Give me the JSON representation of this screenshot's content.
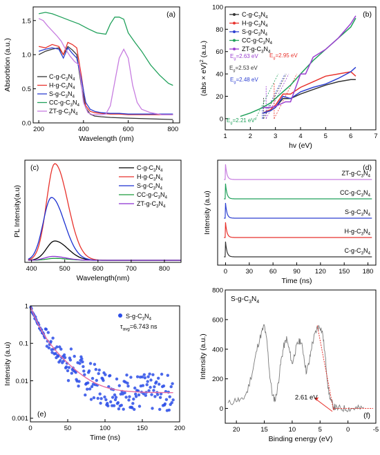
{
  "panels": {
    "a": {
      "tag": "(a)",
      "xlabel": "Wavelength (nm)",
      "ylabel": "Absorbtion (a.u.)",
      "xlim": [
        175,
        830
      ],
      "ylim": [
        0,
        1.7
      ],
      "xticks": [
        200,
        400,
        600,
        800
      ],
      "yticks": [
        0.0,
        0.5,
        1.0,
        1.5
      ],
      "ytick_labels": [
        "0.0",
        "0.5",
        "1.0",
        "1.5"
      ],
      "series": [
        {
          "name": "C-g-C3N4",
          "label_parts": [
            "C-g-C",
            "3",
            "N",
            "4"
          ],
          "color": "#333333",
          "x": [
            200,
            230,
            260,
            290,
            310,
            330,
            350,
            370,
            390,
            410,
            430,
            450,
            480,
            520,
            560,
            600,
            650,
            700,
            750,
            800
          ],
          "y": [
            1.0,
            1.05,
            1.08,
            1.1,
            1.0,
            1.12,
            1.07,
            1.0,
            0.55,
            0.22,
            0.13,
            0.1,
            0.09,
            0.08,
            0.075,
            0.07,
            0.065,
            0.06,
            0.055,
            0.05
          ]
        },
        {
          "name": "H-g-C3N4",
          "label_parts": [
            "H-g-C",
            "3",
            "N",
            "4"
          ],
          "color": "#e8322c",
          "x": [
            200,
            230,
            260,
            290,
            310,
            330,
            350,
            370,
            390,
            410,
            430,
            450,
            480,
            520,
            560,
            600,
            650,
            700,
            750,
            800
          ],
          "y": [
            1.12,
            1.1,
            1.15,
            1.12,
            1.0,
            1.18,
            1.15,
            1.1,
            0.7,
            0.25,
            0.17,
            0.15,
            0.14,
            0.13,
            0.13,
            0.12,
            0.12,
            0.12,
            0.12,
            0.12
          ]
        },
        {
          "name": "S-g-C3N4",
          "label_parts": [
            "S-g-C",
            "3",
            "N",
            "4"
          ],
          "color": "#2c3fd1",
          "x": [
            200,
            230,
            260,
            290,
            310,
            330,
            350,
            370,
            390,
            410,
            430,
            450,
            480,
            520,
            560,
            600,
            650,
            700,
            750,
            800
          ],
          "y": [
            1.05,
            1.08,
            1.1,
            1.08,
            0.95,
            1.1,
            1.02,
            0.95,
            0.65,
            0.3,
            0.2,
            0.17,
            0.15,
            0.14,
            0.14,
            0.13,
            0.13,
            0.13,
            0.13,
            0.13
          ]
        },
        {
          "name": "CC-g-C3N4",
          "label_parts": [
            "CC-g-C",
            "3",
            "N",
            "4"
          ],
          "color": "#1fa05a",
          "x": [
            200,
            230,
            260,
            300,
            340,
            380,
            420,
            460,
            500,
            520,
            540,
            560,
            580,
            600,
            630,
            660,
            700,
            740,
            780,
            800
          ],
          "y": [
            1.6,
            1.62,
            1.6,
            1.55,
            1.5,
            1.45,
            1.38,
            1.32,
            1.3,
            1.45,
            1.55,
            1.55,
            1.52,
            1.32,
            1.18,
            1.05,
            0.85,
            0.7,
            0.58,
            0.55
          ]
        },
        {
          "name": "ZT-g-C3N4",
          "label_parts": [
            "ZT-g-C",
            "3",
            "N",
            "4"
          ],
          "color": "#c77de0",
          "x": [
            200,
            220,
            240,
            260,
            280,
            300,
            320,
            340,
            360,
            380,
            400,
            420,
            440,
            460,
            480,
            500,
            520,
            540,
            560,
            580,
            600,
            620,
            640,
            660,
            700,
            750,
            800
          ],
          "y": [
            1.53,
            1.5,
            1.42,
            1.35,
            1.28,
            1.2,
            1.08,
            0.98,
            0.9,
            0.85,
            0.3,
            0.15,
            0.12,
            0.12,
            0.12,
            0.13,
            0.25,
            0.6,
            0.95,
            1.08,
            0.95,
            0.55,
            0.3,
            0.2,
            0.15,
            0.12,
            0.12
          ]
        }
      ]
    },
    "b": {
      "tag": "(b)",
      "xlabel": "hv (eV)",
      "ylabel_parts": [
        "(abs × eV)",
        "2",
        " (a.u.)"
      ],
      "xlim": [
        1,
        7
      ],
      "ylim": [
        -10,
        100
      ],
      "xticks": [
        1,
        2,
        3,
        4,
        5,
        6,
        7
      ],
      "yticks": [
        0,
        20,
        40,
        60,
        80,
        100
      ],
      "series": [
        {
          "name": "C-g-C3N4",
          "label_parts": [
            "C-g-C",
            "3",
            "N",
            "4"
          ],
          "color": "#333333",
          "x": [
            2.5,
            2.8,
            3.0,
            3.3,
            3.6,
            4.0,
            4.5,
            5.0,
            5.5,
            6.0,
            6.2
          ],
          "y": [
            5,
            7,
            10,
            18,
            18,
            22,
            26,
            30,
            33,
            35,
            35
          ]
        },
        {
          "name": "H-g-C3N4",
          "label_parts": [
            "H-g-C",
            "3",
            "N",
            "4"
          ],
          "color": "#e8322c",
          "x": [
            2.5,
            2.8,
            3.0,
            3.3,
            3.6,
            4.0,
            4.5,
            5.0,
            5.5,
            6.0,
            6.2
          ],
          "y": [
            5,
            8,
            12,
            22,
            22,
            28,
            33,
            38,
            40,
            42,
            38
          ]
        },
        {
          "name": "S-g-C3N4",
          "label_parts": [
            "S-g-C",
            "3",
            "N",
            "4"
          ],
          "color": "#2c3fd1",
          "x": [
            2.5,
            2.8,
            3.0,
            3.3,
            3.6,
            4.0,
            4.5,
            5.0,
            5.5,
            6.0,
            6.2
          ],
          "y": [
            5,
            7,
            10,
            20,
            18,
            24,
            28,
            31,
            36,
            42,
            46
          ]
        },
        {
          "name": "CC-g-C3N4",
          "label_parts": [
            "CC-g-C",
            "3",
            "N",
            "4"
          ],
          "color": "#1fa05a",
          "x": [
            1.6,
            2.0,
            2.4,
            2.8,
            3.2,
            3.6,
            4.0,
            4.5,
            5.0,
            5.5,
            6.0,
            6.2
          ],
          "y": [
            2,
            5,
            9,
            14,
            22,
            30,
            40,
            52,
            62,
            72,
            82,
            90
          ]
        },
        {
          "name": "ZT-g-C3N4",
          "label_parts": [
            "ZT-g-C",
            "3",
            "N",
            "4"
          ],
          "color": "#9a3fd0",
          "x": [
            2.5,
            2.8,
            3.0,
            3.4,
            3.6,
            4.0,
            4.2,
            4.5,
            5.0,
            5.5,
            6.0,
            6.2
          ],
          "y": [
            10,
            10,
            11,
            15,
            15,
            40,
            40,
            55,
            62,
            72,
            85,
            92
          ]
        }
      ],
      "annotations": [
        {
          "label_parts": [
            "E",
            "g",
            "=2.63 eV"
          ],
          "color": "#9a3fd0",
          "x": 2.63,
          "y": 33
        },
        {
          "label_parts": [
            "E",
            "g",
            "=2.53 eV"
          ],
          "color": "#333333",
          "x": 2.53,
          "y": 23
        },
        {
          "label_parts": [
            "E",
            "g",
            "=2.48 eV"
          ],
          "color": "#2c3fd1",
          "x": 2.48,
          "y": 15
        },
        {
          "label_parts": [
            "E",
            "g",
            "=2.21 eV"
          ],
          "color": "#1fa05a",
          "x": 2.21,
          "y": 2
        },
        {
          "label_parts": [
            "E",
            "g",
            "=2.95 eV"
          ],
          "color": "#e8322c",
          "x": 2.95,
          "y": 36
        }
      ]
    },
    "c": {
      "tag": "(c)",
      "xlabel": "Wavelength(nm)",
      "ylabel": "PL Intensity(a.u)",
      "xlim": [
        380,
        850
      ],
      "xticks": [
        400,
        500,
        600,
        700,
        800
      ],
      "series": [
        {
          "name": "C-g-C3N4",
          "label_parts": [
            "C-g-C",
            "3",
            "N",
            "4"
          ],
          "color": "#000000",
          "peak": 0.2,
          "center": 470
        },
        {
          "name": "H-g-C3N4",
          "label_parts": [
            "H-g-C",
            "3",
            "N",
            "4"
          ],
          "color": "#e8322c",
          "peak": 1.0,
          "center": 470
        },
        {
          "name": "S-g-C3N4",
          "label_parts": [
            "S-g-C",
            "3",
            "N",
            "4"
          ],
          "color": "#1a2fd1",
          "peak": 0.65,
          "center": 460
        },
        {
          "name": "CC-g-C3N4",
          "label_parts": [
            "CC-g-C",
            "3",
            "N",
            "4"
          ],
          "color": "#1a9a3a",
          "peak": 0.02,
          "center": 470
        },
        {
          "name": "ZT-g-C3N4",
          "label_parts": [
            "ZT-g-C",
            "3",
            "N",
            "4"
          ],
          "color": "#8a2fd0",
          "peak": 0.04,
          "center": 465
        }
      ]
    },
    "d": {
      "tag": "(d)",
      "xlabel": "Time (ns)",
      "ylabel": "Intensity (a.u)",
      "xlim": [
        -10,
        190
      ],
      "xticks": [
        0,
        30,
        60,
        90,
        120,
        150,
        180
      ],
      "series": [
        {
          "name": "ZT-g-C3N4",
          "label_parts": [
            "ZT-g-C",
            "3",
            "N",
            "4"
          ],
          "color": "#c77de0"
        },
        {
          "name": "CC-g-C3N4",
          "label_parts": [
            "CC-g-C",
            "3",
            "N",
            "4"
          ],
          "color": "#1fa05a"
        },
        {
          "name": "S-g-C3N4",
          "label_parts": [
            "S-g-C",
            "3",
            "N",
            "4"
          ],
          "color": "#2c3fd1"
        },
        {
          "name": "H-g-C3N4",
          "label_parts": [
            "H-g-C",
            "3",
            "N",
            "4"
          ],
          "color": "#e8322c"
        },
        {
          "name": "C-g-C3N4",
          "label_parts": [
            "C-g-C",
            "3",
            "N",
            "4"
          ],
          "color": "#333333"
        }
      ]
    },
    "e": {
      "tag": "(e)",
      "xlabel": "Time (ns)",
      "ylabel": "Intensity (a.u)",
      "xlim": [
        0,
        200
      ],
      "ylim_log": [
        0.0008,
        1
      ],
      "xticks": [
        0,
        50,
        100,
        150,
        200
      ],
      "yticks": [
        0.001,
        0.01,
        0.1,
        1
      ],
      "ytick_labels": [
        "0.001",
        "0.01",
        "0.1",
        "1"
      ],
      "legend_parts": [
        "S-g-C",
        "3",
        "N",
        "4"
      ],
      "tau_parts": [
        "τ",
        "avg",
        "=6.743 ns"
      ],
      "tau_ns": 6.743,
      "baseline": 0.0048,
      "dot_color": "#2b4de8",
      "fit_color": "#e86aa0"
    },
    "f": {
      "tag": "(f)",
      "title_parts": [
        "S-g-C",
        "3",
        "N",
        "4"
      ],
      "xlabel": "Binding energy (eV)",
      "ylabel": "Intensity (a.u.)",
      "xlim": [
        22,
        -5
      ],
      "ylim": [
        -100,
        800
      ],
      "xticks": [
        20,
        15,
        10,
        5,
        0,
        -5
      ],
      "yticks": [
        0,
        200,
        400,
        600,
        800
      ],
      "annotation": "2.61 eV",
      "line_color": "#7a7a7a",
      "fit_color": "#e8322c",
      "x": [
        21.5,
        20,
        19,
        18,
        17,
        16.2,
        15.5,
        15,
        14.5,
        14,
        13.5,
        13,
        12.5,
        12,
        11.5,
        11,
        10.5,
        10,
        9.5,
        9,
        8.5,
        8,
        7.5,
        7,
        6.5,
        6,
        5.5,
        5,
        4.5,
        4,
        3.5,
        3,
        2.5,
        2,
        1,
        0,
        -1,
        -2,
        -3
      ],
      "y": [
        30,
        60,
        50,
        120,
        270,
        420,
        510,
        560,
        440,
        220,
        80,
        60,
        170,
        320,
        420,
        470,
        390,
        300,
        380,
        440,
        460,
        380,
        250,
        300,
        420,
        490,
        545,
        555,
        500,
        320,
        120,
        40,
        10,
        0,
        0,
        0,
        0,
        0,
        0
      ]
    }
  }
}
